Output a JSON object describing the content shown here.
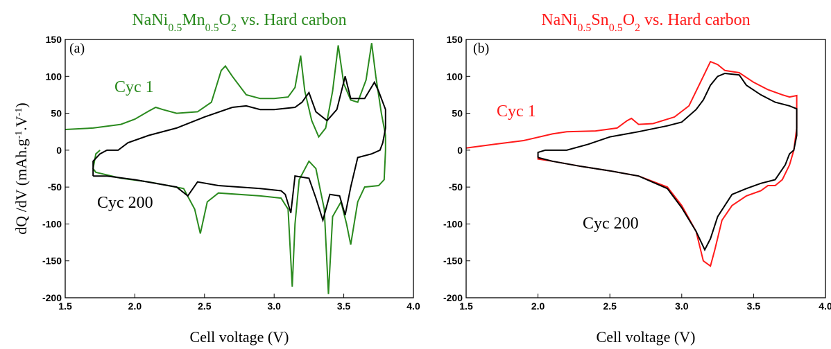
{
  "chart_data": [
    {
      "type": "line",
      "title": [
        "NaNi",
        "0.5",
        "Mn",
        "0.5",
        "O",
        "2",
        " vs. Hard carbon"
      ],
      "title_color": "#2a8a1e",
      "y_label": [
        "dQ /dV (mAh.g",
        "-1",
        ".V",
        "-1",
        ")"
      ],
      "x_label": "Cell voltage (V)",
      "annotations": [
        {
          "text": "(a)",
          "color": "#000000"
        },
        {
          "text": "Cyc 1",
          "color": "#2a8a1e"
        },
        {
          "text": "Cyc 200",
          "color": "#000000"
        }
      ],
      "xlim": [
        1.5,
        4.0
      ],
      "ylim": [
        -200,
        150
      ],
      "xticks": [
        1.5,
        {
          "value": 2,
          "label": "2.0"
        },
        2.5,
        {
          "value": 3,
          "label": "3.0"
        },
        3.5,
        {
          "value": 4,
          "label": "4.0"
        }
      ],
      "yticks": [
        -200,
        -150,
        -100,
        -50,
        0,
        50,
        100,
        150
      ],
      "series": [
        {
          "name": "Cyc 1",
          "color": "#2a8a1e",
          "x": [
            1.5,
            1.7,
            1.9,
            2.0,
            2.1,
            2.15,
            2.2,
            2.3,
            2.45,
            2.55,
            2.62,
            2.65,
            2.7,
            2.8,
            2.9,
            3.0,
            3.1,
            3.15,
            3.19,
            3.22,
            3.27,
            3.32,
            3.37,
            3.42,
            3.46,
            3.5,
            3.55,
            3.6,
            3.66,
            3.7,
            3.73,
            3.77,
            3.8,
            3.8,
            3.79,
            3.75,
            3.65,
            3.6,
            3.55,
            3.52,
            3.48,
            3.42,
            3.39,
            3.36,
            3.3,
            3.25,
            3.18,
            3.15,
            3.13,
            3.1,
            3.05,
            2.9,
            2.6,
            2.52,
            2.47,
            2.43,
            2.35,
            2.1,
            1.9,
            1.72,
            1.7,
            1.72,
            1.75
          ],
          "values": [
            28,
            30,
            35,
            42,
            53,
            58,
            55,
            50,
            52,
            65,
            108,
            114,
            100,
            75,
            70,
            70,
            72,
            85,
            128,
            80,
            40,
            18,
            30,
            80,
            142,
            90,
            68,
            65,
            95,
            145,
            100,
            50,
            20,
            0,
            -40,
            -48,
            -50,
            -70,
            -128,
            -100,
            -70,
            -90,
            -195,
            -80,
            -25,
            -15,
            -40,
            -100,
            -185,
            -80,
            -65,
            -62,
            -58,
            -70,
            -113,
            -80,
            -52,
            -43,
            -38,
            -30,
            -25,
            -5,
            0
          ]
        },
        {
          "name": "Cyc 200",
          "color": "#000000",
          "x": [
            1.7,
            1.7,
            1.75,
            1.8,
            1.88,
            1.95,
            2.1,
            2.3,
            2.5,
            2.7,
            2.8,
            2.9,
            3.0,
            3.15,
            3.2,
            3.25,
            3.3,
            3.38,
            3.45,
            3.51,
            3.55,
            3.65,
            3.72,
            3.75,
            3.8,
            3.8,
            3.78,
            3.76,
            3.7,
            3.6,
            3.55,
            3.51,
            3.47,
            3.4,
            3.35,
            3.3,
            3.25,
            3.15,
            3.12,
            3.08,
            3.05,
            2.9,
            2.6,
            2.45,
            2.38,
            2.3,
            2.0,
            1.8,
            1.7
          ],
          "values": [
            -35,
            -15,
            -5,
            0,
            0,
            10,
            20,
            30,
            45,
            58,
            60,
            55,
            55,
            58,
            65,
            78,
            52,
            40,
            55,
            100,
            70,
            70,
            92,
            80,
            55,
            30,
            10,
            0,
            -5,
            -10,
            -50,
            -88,
            -62,
            -60,
            -95,
            -65,
            -38,
            -35,
            -85,
            -60,
            -55,
            -52,
            -48,
            -43,
            -62,
            -50,
            -40,
            -35,
            -35
          ]
        }
      ]
    },
    {
      "type": "line",
      "title": [
        "NaNi",
        "0.5",
        "Sn",
        "0.5",
        "O",
        "2",
        " vs. Hard carbon"
      ],
      "title_color": "#ff1a1a",
      "x_label": "Cell voltage (V)",
      "annotations": [
        {
          "text": "(b)",
          "color": "#000000"
        },
        {
          "text": "Cyc 1",
          "color": "#ff1a1a"
        },
        {
          "text": "Cyc 200",
          "color": "#000000"
        }
      ],
      "xlim": [
        1.5,
        4.0
      ],
      "ylim": [
        -200,
        150
      ],
      "xticks": [
        1.5,
        {
          "value": 2,
          "label": "2.0"
        },
        2.5,
        {
          "value": 3,
          "label": "3.0"
        },
        3.5,
        {
          "value": 4,
          "label": "4.0"
        }
      ],
      "yticks": [
        -200,
        -150,
        -100,
        -50,
        0,
        50,
        100,
        150
      ],
      "series": [
        {
          "name": "Cyc 1",
          "color": "#ff1a1a",
          "x": [
            1.5,
            1.7,
            1.9,
            2.1,
            2.2,
            2.4,
            2.55,
            2.62,
            2.65,
            2.7,
            2.8,
            2.95,
            3.05,
            3.15,
            3.2,
            3.25,
            3.3,
            3.4,
            3.5,
            3.6,
            3.7,
            3.75,
            3.8,
            3.8,
            3.78,
            3.75,
            3.7,
            3.65,
            3.6,
            3.55,
            3.45,
            3.35,
            3.28,
            3.23,
            3.2,
            3.15,
            3.1,
            3.0,
            2.9,
            2.7,
            2.5,
            2.3,
            2.1,
            2.0,
            2.0
          ],
          "values": [
            3,
            8,
            13,
            22,
            25,
            26,
            30,
            40,
            43,
            35,
            36,
            45,
            60,
            100,
            120,
            116,
            108,
            105,
            92,
            82,
            75,
            72,
            74,
            30,
            0,
            -20,
            -40,
            -48,
            -48,
            -55,
            -62,
            -75,
            -95,
            -135,
            -157,
            -150,
            -110,
            -75,
            -50,
            -35,
            -28,
            -22,
            -15,
            -12,
            -8
          ]
        },
        {
          "name": "Cyc 200",
          "color": "#000000",
          "x": [
            2.0,
            2.0,
            2.05,
            2.2,
            2.35,
            2.5,
            2.7,
            2.9,
            3.0,
            3.1,
            3.15,
            3.2,
            3.25,
            3.3,
            3.4,
            3.45,
            3.55,
            3.65,
            3.75,
            3.8,
            3.8,
            3.78,
            3.75,
            3.72,
            3.65,
            3.55,
            3.45,
            3.35,
            3.25,
            3.2,
            3.16,
            3.1,
            3.0,
            2.9,
            2.7,
            2.5,
            2.3,
            2.1,
            2.0
          ],
          "values": [
            -10,
            -3,
            0,
            0,
            8,
            18,
            25,
            33,
            38,
            55,
            68,
            88,
            100,
            104,
            102,
            88,
            75,
            65,
            60,
            56,
            20,
            0,
            -5,
            -20,
            -40,
            -45,
            -52,
            -60,
            -90,
            -120,
            -135,
            -110,
            -78,
            -52,
            -35,
            -28,
            -22,
            -15,
            -10
          ]
        }
      ]
    }
  ]
}
